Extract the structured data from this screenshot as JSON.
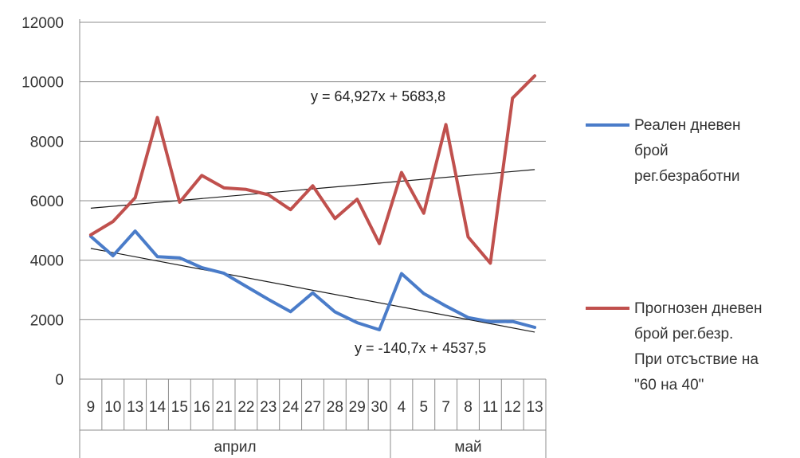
{
  "chart_data": {
    "type": "line",
    "categories": [
      "9",
      "10",
      "13",
      "14",
      "15",
      "16",
      "21",
      "22",
      "23",
      "24",
      "27",
      "28",
      "29",
      "30",
      "4",
      "5",
      "7",
      "8",
      "11",
      "12",
      "13"
    ],
    "groups": [
      {
        "label": "април",
        "count": 14
      },
      {
        "label": "май",
        "count": 7
      }
    ],
    "ylim": [
      0,
      12000
    ],
    "yticks": [
      0,
      2000,
      4000,
      6000,
      8000,
      10000,
      12000
    ],
    "grid": true,
    "legend_position": "right",
    "series": [
      {
        "name_lines": [
          "Реален дневен",
          "брой",
          "рег.безработни"
        ],
        "color": "#4a7cc9",
        "values": [
          4800,
          4150,
          4980,
          4120,
          4080,
          3750,
          3560,
          3120,
          2680,
          2270,
          2900,
          2260,
          1900,
          1660,
          3550,
          2880,
          2460,
          2070,
          1930,
          1940,
          1740
        ],
        "trendline": {
          "slope": -140.7,
          "intercept": 4537.5,
          "label": "y = -140,7x + 4537,5"
        }
      },
      {
        "name_lines": [
          "Прогнозен дневен",
          "брой рег.безр.",
          "При отсъствие на",
          "\"60 на 40\""
        ],
        "color": "#c0504d",
        "values": [
          4850,
          5300,
          6100,
          8800,
          5950,
          6850,
          6430,
          6380,
          6200,
          5700,
          6500,
          5400,
          6050,
          4560,
          6950,
          5580,
          8560,
          4780,
          3900,
          9450,
          10200
        ],
        "trendline": {
          "slope": 64.927,
          "intercept": 5683.8,
          "label": "y = 64,927x + 5683,8"
        }
      }
    ]
  }
}
